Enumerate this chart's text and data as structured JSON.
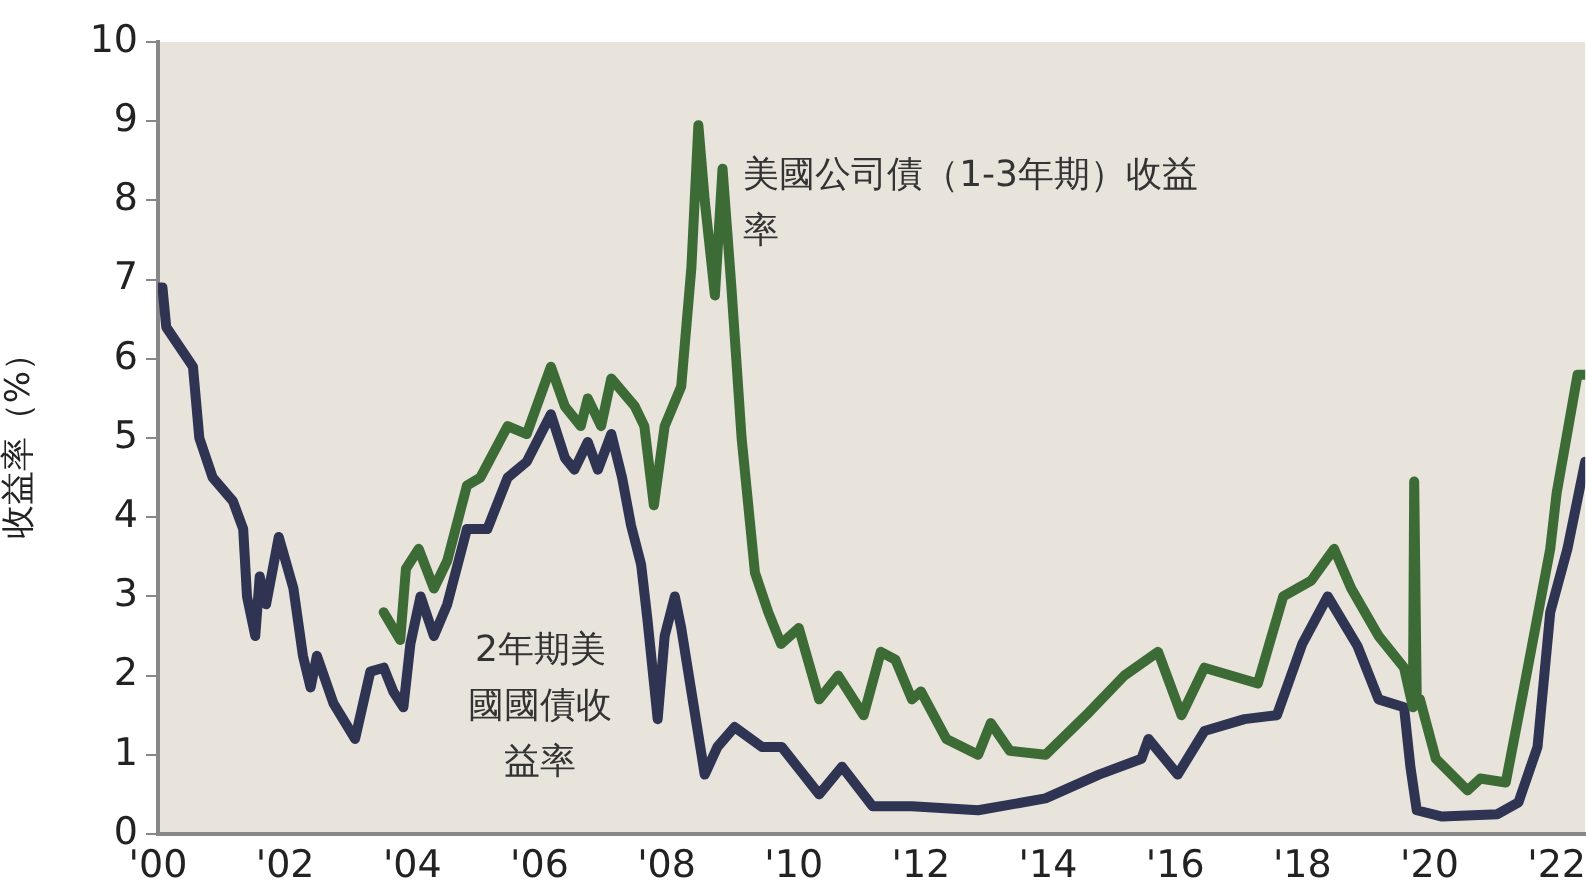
{
  "chart_data": {
    "type": "line",
    "ylabel": "收益率（%）",
    "xlim": [
      2000,
      2022.45
    ],
    "ylim": [
      0,
      10
    ],
    "xticks": [
      {
        "value": 2000,
        "label": "'00"
      },
      {
        "value": 2002,
        "label": "'02"
      },
      {
        "value": 2004,
        "label": "'04"
      },
      {
        "value": 2006,
        "label": "'06"
      },
      {
        "value": 2008,
        "label": "'08"
      },
      {
        "value": 2010,
        "label": "'10"
      },
      {
        "value": 2012,
        "label": "'12"
      },
      {
        "value": 2014,
        "label": "'14"
      },
      {
        "value": 2016,
        "label": "'16"
      },
      {
        "value": 2018,
        "label": "'18"
      },
      {
        "value": 2020,
        "label": "'20"
      },
      {
        "value": 2022,
        "label": "'22"
      }
    ],
    "yticks": [
      0,
      1,
      2,
      3,
      4,
      5,
      6,
      7,
      8,
      9,
      10
    ],
    "grid": false,
    "legend": false,
    "marker": "none",
    "line_style": "solid",
    "series": [
      {
        "name": "美國公司債（1-3年期）收益率",
        "color": "#3d6b35",
        "x": [
          2003.55,
          2003.81,
          2003.9,
          2004.1,
          2004.34,
          2004.55,
          2004.86,
          2005.07,
          2005.5,
          2005.8,
          2006.18,
          2006.4,
          2006.65,
          2006.76,
          2006.97,
          2007.13,
          2007.5,
          2007.65,
          2007.8,
          2007.97,
          2008.23,
          2008.39,
          2008.5,
          2008.6,
          2008.76,
          2008.88,
          2009.02,
          2009.18,
          2009.39,
          2009.6,
          2009.8,
          2010.08,
          2010.4,
          2010.7,
          2011.1,
          2011.37,
          2011.6,
          2011.86,
          2012.0,
          2012.4,
          2012.9,
          2013.1,
          2013.4,
          2013.96,
          2014.6,
          2015.2,
          2015.73,
          2016.1,
          2016.46,
          2017.3,
          2017.7,
          2018.14,
          2018.5,
          2018.77,
          2019.2,
          2019.6,
          2019.74,
          2019.76,
          2019.8,
          2019.85,
          2020.1,
          2020.6,
          2020.8,
          2021.2,
          2021.5,
          2021.9,
          2022.0,
          2022.33,
          2022.45
        ],
        "values": [
          2.8,
          2.45,
          3.35,
          3.6,
          3.1,
          3.45,
          4.4,
          4.5,
          5.15,
          5.05,
          5.9,
          5.4,
          5.15,
          5.5,
          5.15,
          5.75,
          5.4,
          5.15,
          4.15,
          5.15,
          5.65,
          7.15,
          8.95,
          8.0,
          6.8,
          8.4,
          6.9,
          5.0,
          3.3,
          2.8,
          2.4,
          2.6,
          1.7,
          2.0,
          1.5,
          2.3,
          2.2,
          1.7,
          1.8,
          1.2,
          1.0,
          1.4,
          1.05,
          1.0,
          1.5,
          2.0,
          2.3,
          1.5,
          2.1,
          1.9,
          3.0,
          3.2,
          3.6,
          3.1,
          2.5,
          2.1,
          1.6,
          4.45,
          1.7,
          1.7,
          0.95,
          0.55,
          0.7,
          0.65,
          1.9,
          3.6,
          4.3,
          5.8,
          5.8
        ]
      },
      {
        "name": "2年期美國國債收益率",
        "color": "#2e3452",
        "x": [
          2000.0,
          2000.07,
          2000.13,
          2000.55,
          2000.65,
          2000.86,
          2001.18,
          2001.34,
          2001.4,
          2001.53,
          2001.6,
          2001.7,
          2001.9,
          2002.13,
          2002.28,
          2002.4,
          2002.5,
          2002.76,
          2003.1,
          2003.34,
          2003.55,
          2003.7,
          2003.86,
          2003.97,
          2004.13,
          2004.34,
          2004.55,
          2004.86,
          2005.18,
          2005.5,
          2005.8,
          2006.18,
          2006.4,
          2006.55,
          2006.76,
          2006.92,
          2007.13,
          2007.3,
          2007.44,
          2007.6,
          2007.7,
          2007.86,
          2007.97,
          2008.13,
          2008.23,
          2008.4,
          2008.6,
          2008.8,
          2009.07,
          2009.5,
          2009.81,
          2010.4,
          2010.76,
          2011.24,
          2011.86,
          2012.9,
          2013.96,
          2014.8,
          2015.47,
          2015.58,
          2016.04,
          2016.46,
          2017.09,
          2017.6,
          2018.0,
          2018.4,
          2018.87,
          2019.2,
          2019.6,
          2019.7,
          2019.8,
          2020.2,
          2021.07,
          2021.4,
          2021.7,
          2021.9,
          2022.17,
          2022.45
        ],
        "values": [
          6.9,
          6.9,
          6.4,
          5.9,
          5.0,
          4.5,
          4.2,
          3.85,
          3.0,
          2.5,
          3.25,
          2.9,
          3.75,
          3.1,
          2.25,
          1.85,
          2.25,
          1.65,
          1.2,
          2.05,
          2.1,
          1.8,
          1.6,
          2.4,
          3.0,
          2.5,
          2.9,
          3.85,
          3.85,
          4.5,
          4.7,
          5.3,
          4.75,
          4.6,
          4.95,
          4.6,
          5.05,
          4.5,
          3.9,
          3.4,
          2.7,
          1.45,
          2.5,
          3.0,
          2.6,
          1.75,
          0.75,
          1.1,
          1.35,
          1.1,
          1.1,
          0.5,
          0.85,
          0.35,
          0.35,
          0.3,
          0.45,
          0.75,
          0.95,
          1.2,
          0.75,
          1.3,
          1.45,
          1.5,
          2.4,
          3.0,
          2.37,
          1.7,
          1.6,
          0.85,
          0.3,
          0.22,
          0.25,
          0.4,
          1.1,
          2.8,
          3.6,
          4.7
        ]
      }
    ]
  }
}
